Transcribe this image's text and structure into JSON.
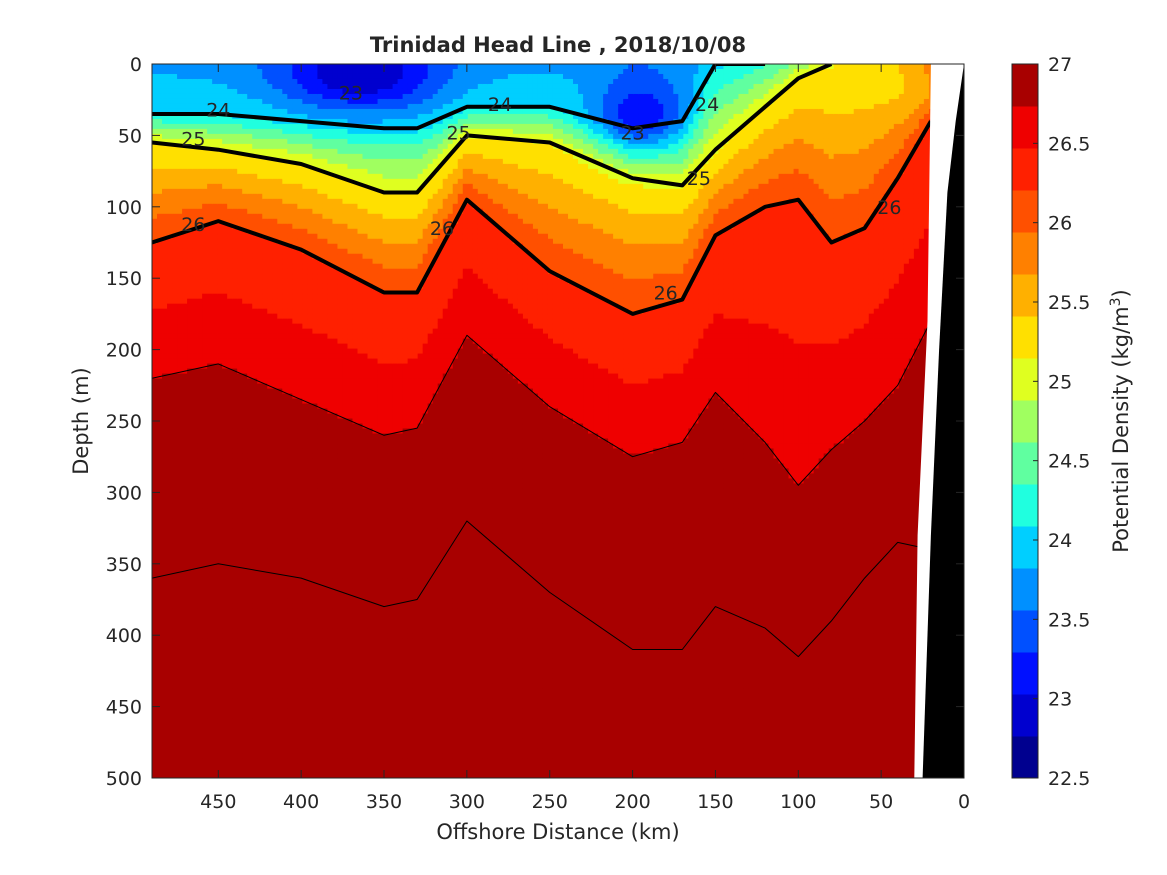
{
  "chart_data": {
    "type": "contour",
    "title": "Trinidad Head Line , 2018/10/08",
    "xlabel": "Offshore Distance (km)",
    "ylabel": "Depth (m)",
    "xlim": [
      490,
      0
    ],
    "x_reversed": true,
    "ylim": [
      0,
      500
    ],
    "y_reversed": true,
    "x_ticks": [
      "450",
      "400",
      "350",
      "300",
      "250",
      "200",
      "150",
      "100",
      "50",
      "0"
    ],
    "x_tick_values": [
      450,
      400,
      350,
      300,
      250,
      200,
      150,
      100,
      50,
      0
    ],
    "y_ticks": [
      "0",
      "50",
      "100",
      "150",
      "200",
      "250",
      "300",
      "350",
      "400",
      "450",
      "500"
    ],
    "y_tick_values": [
      0,
      50,
      100,
      150,
      200,
      250,
      300,
      350,
      400,
      450,
      500
    ],
    "colorbar": {
      "label": "Potential Density (kg/m",
      "label_superscript": "3",
      "label_suffix": ")",
      "range": [
        22.5,
        27
      ],
      "tick_labels": [
        "27",
        "26.5",
        "26",
        "25.5",
        "25",
        "24.5",
        "24",
        "23.5",
        "23",
        "22.5"
      ],
      "tick_values": [
        27,
        26.5,
        26,
        25.5,
        25,
        24.5,
        24,
        23.5,
        23,
        22.5
      ],
      "levels": [
        22.5,
        22.75,
        23,
        23.25,
        23.5,
        23.75,
        24,
        24.25,
        24.5,
        24.75,
        25,
        25.25,
        25.5,
        25.75,
        26,
        26.25,
        26.5,
        26.75,
        27
      ],
      "colors": [
        "#00008F",
        "#0000CF",
        "#0010FF",
        "#0050FF",
        "#0090FF",
        "#00CFFF",
        "#20FFDF",
        "#60FFA0",
        "#A0FF60",
        "#DFFF20",
        "#FFE000",
        "#FFB000",
        "#FF8000",
        "#FF5000",
        "#FF2000",
        "#EF0000",
        "#A80000"
      ]
    },
    "contour_labels": [
      {
        "text": "23",
        "x": 370,
        "depth": 20
      },
      {
        "text": "24",
        "x": 450,
        "depth": 32
      },
      {
        "text": "24",
        "x": 280,
        "depth": 28
      },
      {
        "text": "24",
        "x": 155,
        "depth": 28
      },
      {
        "text": "25",
        "x": 465,
        "depth": 52
      },
      {
        "text": "25",
        "x": 305,
        "depth": 48
      },
      {
        "text": "23",
        "x": 200,
        "depth": 48
      },
      {
        "text": "25",
        "x": 160,
        "depth": 80
      },
      {
        "text": "26",
        "x": 465,
        "depth": 112
      },
      {
        "text": "26",
        "x": 315,
        "depth": 115
      },
      {
        "text": "26",
        "x": 180,
        "depth": 160
      },
      {
        "text": "26",
        "x": 45,
        "depth": 100
      }
    ],
    "isopycnal_depths_m": {
      "x_km": [
        490,
        450,
        400,
        350,
        330,
        300,
        250,
        200,
        170,
        150,
        120,
        100,
        80,
        60,
        40,
        20
      ],
      "sigma_24": [
        35,
        35,
        40,
        45,
        45,
        30,
        30,
        45,
        40,
        0,
        0,
        null,
        null,
        null,
        null,
        null
      ],
      "sigma_25": [
        55,
        60,
        70,
        90,
        90,
        50,
        55,
        80,
        85,
        60,
        30,
        10,
        0,
        null,
        null,
        null
      ],
      "sigma_26": [
        125,
        110,
        130,
        160,
        160,
        95,
        145,
        175,
        165,
        120,
        100,
        95,
        125,
        115,
        80,
        40
      ],
      "sigma_26_5": [
        220,
        210,
        235,
        260,
        255,
        190,
        240,
        275,
        265,
        230,
        265,
        295,
        270,
        250,
        225,
        180
      ],
      "sigma_26_75": [
        360,
        350,
        360,
        380,
        375,
        320,
        370,
        410,
        410,
        380,
        395,
        415,
        390,
        360,
        335,
        340
      ]
    },
    "bathymetry_depth_m": {
      "x_km": [
        25,
        20,
        15,
        10,
        5,
        0
      ],
      "depth": [
        500,
        330,
        200,
        90,
        40,
        0
      ]
    }
  }
}
